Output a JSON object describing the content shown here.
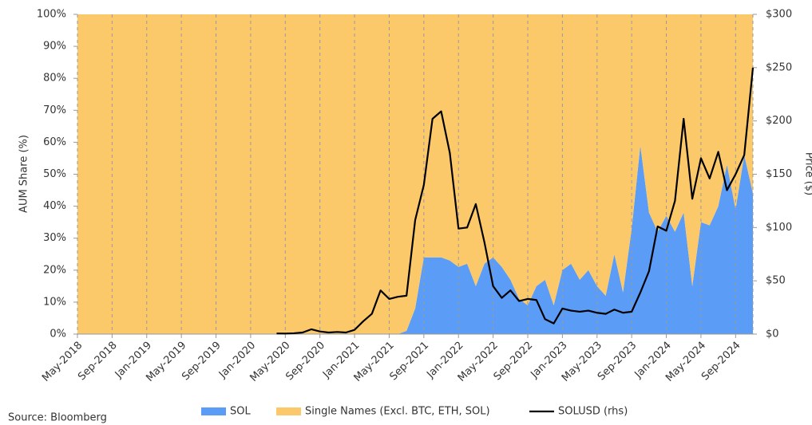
{
  "chart_data": {
    "type": "stacked-area-line",
    "source": "Source: Bloomberg",
    "ylabel": "AUM Share (%)",
    "y2label": "Price ($)",
    "categories": [
      "May-2018",
      null,
      null,
      null,
      "Sep-2018",
      null,
      null,
      null,
      "Jan-2019",
      null,
      null,
      null,
      "May-2019",
      null,
      null,
      null,
      "Sep-2019",
      null,
      null,
      null,
      "Jan-2020",
      null,
      null,
      null,
      "May-2020",
      null,
      null,
      null,
      "Sep-2020",
      null,
      null,
      null,
      "Jan-2021",
      null,
      null,
      null,
      "May-2021",
      null,
      null,
      null,
      "Sep-2021",
      null,
      null,
      null,
      "Jan-2022",
      null,
      null,
      null,
      "May-2022",
      null,
      null,
      null,
      "Sep-2022",
      null,
      null,
      null,
      "Jan-2023",
      null,
      null,
      null,
      "May-2023",
      null,
      null,
      null,
      "Sep-2023",
      null,
      null,
      null,
      "Jan-2024",
      null,
      null,
      null,
      "May-2024",
      null,
      null,
      null,
      "Sep-2024",
      null,
      null
    ],
    "series": [
      {
        "name": "SOL",
        "kind": "area",
        "color": "#5b9cf6",
        "values": [
          0,
          0,
          0,
          0,
          0,
          0,
          0,
          0,
          0,
          0,
          0,
          0,
          0,
          0,
          0,
          0,
          0,
          0,
          0,
          0,
          0,
          0,
          0,
          0,
          0,
          0,
          0,
          0,
          0,
          0,
          0,
          0,
          0,
          0,
          0,
          0,
          0,
          0,
          1,
          8,
          24,
          24,
          24,
          23,
          21,
          22,
          15,
          22,
          24,
          21,
          17,
          11,
          9,
          15,
          17,
          9,
          20,
          22,
          17,
          20,
          15,
          12,
          25,
          13,
          33,
          59,
          38,
          32,
          37,
          32,
          38,
          15,
          35,
          34,
          40,
          53,
          39,
          56,
          44
        ]
      },
      {
        "name": "Single Names (Excl. BTC, ETH, SOL)",
        "kind": "area",
        "color": "#fcc96a",
        "values": [
          100,
          100,
          100,
          100,
          100,
          100,
          100,
          100,
          100,
          100,
          100,
          100,
          100,
          100,
          100,
          100,
          100,
          100,
          100,
          100,
          100,
          100,
          100,
          100,
          100,
          100,
          100,
          100,
          100,
          100,
          100,
          100,
          100,
          100,
          100,
          100,
          100,
          100,
          99,
          92,
          76,
          76,
          76,
          77,
          79,
          78,
          85,
          78,
          76,
          79,
          83,
          89,
          91,
          85,
          83,
          91,
          80,
          78,
          83,
          80,
          85,
          88,
          75,
          87,
          67,
          41,
          62,
          68,
          63,
          68,
          62,
          85,
          65,
          66,
          60,
          47,
          61,
          44,
          56
        ]
      },
      {
        "name": "SOLUSD (rhs)",
        "kind": "line",
        "axis": "y2",
        "color": "#000000",
        "values": [
          null,
          null,
          null,
          null,
          null,
          null,
          null,
          null,
          null,
          null,
          null,
          null,
          null,
          null,
          null,
          null,
          null,
          null,
          null,
          null,
          null,
          null,
          null,
          0.6,
          0.5,
          0.8,
          1.5,
          4.5,
          2.5,
          1.5,
          2,
          1.5,
          4,
          12,
          19,
          41,
          33,
          35,
          36,
          107,
          140,
          202,
          209,
          170,
          99,
          100,
          122,
          86,
          45,
          34,
          41,
          31,
          33,
          32,
          14,
          10,
          24,
          22,
          21,
          22,
          20,
          19,
          23,
          20,
          21,
          39,
          59,
          101,
          97,
          125,
          202,
          127,
          165,
          146,
          171,
          135,
          150,
          168,
          250
        ]
      }
    ],
    "ylim": [
      0,
      100
    ],
    "yticks": [
      {
        "value": 0,
        "label": "0%"
      },
      {
        "value": 10,
        "label": "10%"
      },
      {
        "value": 20,
        "label": "20%"
      },
      {
        "value": 30,
        "label": "30%"
      },
      {
        "value": 40,
        "label": "40%"
      },
      {
        "value": 50,
        "label": "50%"
      },
      {
        "value": 60,
        "label": "60%"
      },
      {
        "value": 70,
        "label": "70%"
      },
      {
        "value": 80,
        "label": "80%"
      },
      {
        "value": 90,
        "label": "90%"
      },
      {
        "value": 100,
        "label": "100%"
      }
    ],
    "y2lim": [
      0,
      300
    ],
    "y2ticks": [
      {
        "value": 0,
        "label": "$0"
      },
      {
        "value": 50,
        "label": "$50"
      },
      {
        "value": 100,
        "label": "$100"
      },
      {
        "value": 150,
        "label": "$150"
      },
      {
        "value": 200,
        "label": "$200"
      },
      {
        "value": 250,
        "label": "$250"
      },
      {
        "value": 300,
        "label": "$300"
      }
    ],
    "grid": "x",
    "legend": "bottom"
  }
}
